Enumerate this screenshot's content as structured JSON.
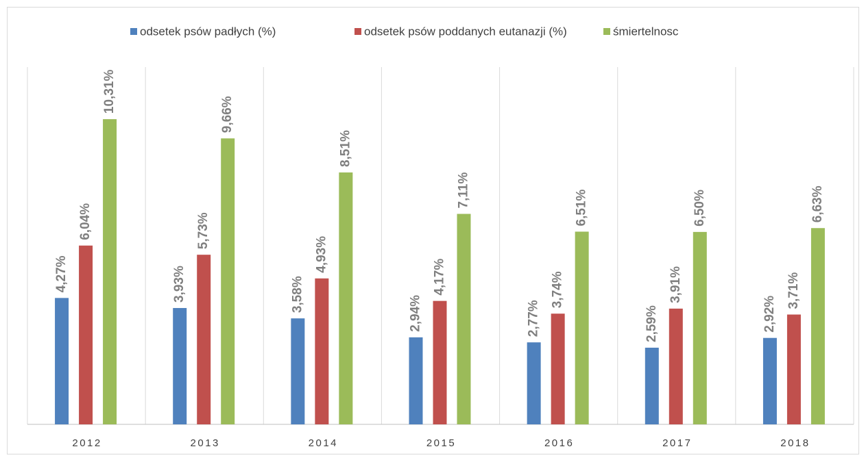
{
  "chart_data": {
    "type": "bar",
    "categories": [
      "2012",
      "2013",
      "2014",
      "2015",
      "2016",
      "2017",
      "2018"
    ],
    "series": [
      {
        "name": "odsetek psów padłych (%)",
        "color": "#4f81bd",
        "values": [
          4.27,
          3.93,
          3.58,
          2.94,
          2.77,
          2.59,
          2.92
        ],
        "value_labels": [
          "4,27%",
          "3,93%",
          "3,58%",
          "2,94%",
          "2,77%",
          "2,59%",
          "2,92%"
        ]
      },
      {
        "name": "odsetek psów poddanych eutanazji (%)",
        "color": "#c0504d",
        "values": [
          6.04,
          5.73,
          4.93,
          4.17,
          3.74,
          3.91,
          3.71
        ],
        "value_labels": [
          "6,04%",
          "5,73%",
          "4,93%",
          "4,17%",
          "3,74%",
          "3,91%",
          "3,71%"
        ]
      },
      {
        "name": "śmiertelnosc",
        "color": "#9bbb59",
        "values": [
          10.31,
          9.66,
          8.51,
          7.11,
          6.51,
          6.5,
          6.63
        ],
        "value_labels": [
          "10,31%",
          "9,66%",
          "8,51%",
          "7,11%",
          "6,51%",
          "6,50%",
          "6,63%"
        ]
      }
    ],
    "ylim": [
      0,
      12
    ],
    "legend": "top"
  }
}
